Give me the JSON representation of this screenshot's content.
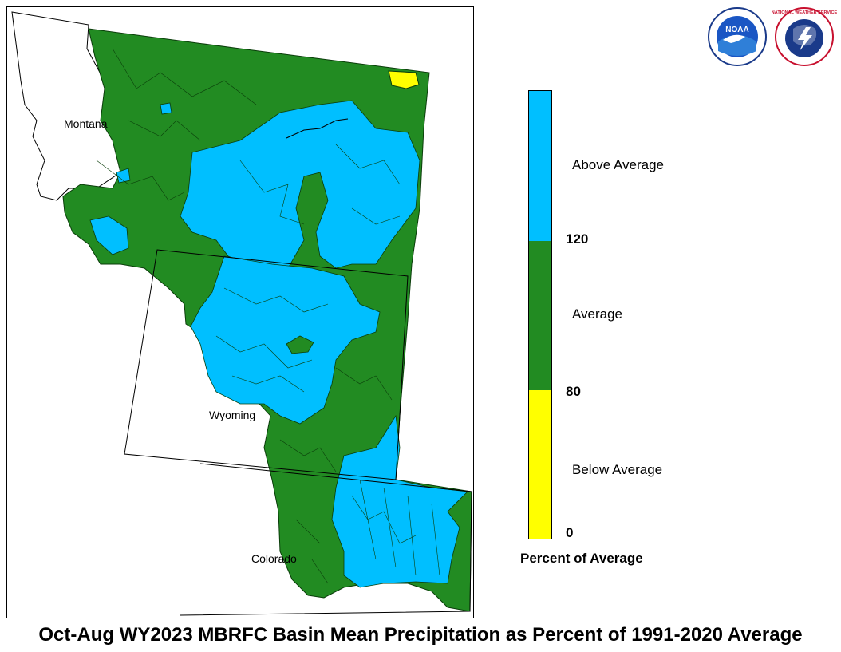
{
  "map": {
    "states": [
      {
        "name": "Montana"
      },
      {
        "name": "Wyoming"
      },
      {
        "name": "Colorado"
      }
    ]
  },
  "legend": {
    "title": "Percent of Average",
    "categories": [
      {
        "label": "Above Average",
        "color": "#00BFFF"
      },
      {
        "label": "Average",
        "color": "#228B22"
      },
      {
        "label": "Below Average",
        "color": "#FFFF00"
      }
    ],
    "ticks": [
      "120",
      "80",
      "0"
    ]
  },
  "logos": {
    "noaa": {
      "text": "NOAA",
      "icon": "noaa-logo-icon"
    },
    "nws": {
      "text": "NATIONAL WEATHER SERVICE",
      "icon": "nws-logo-icon"
    }
  },
  "title": "Oct-Aug WY2023 MBRFC Basin Mean Precipitation as Percent of 1991-2020 Average"
}
